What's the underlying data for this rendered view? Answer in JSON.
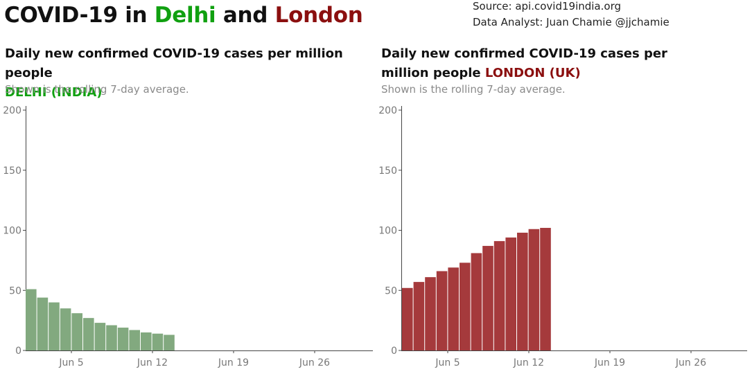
{
  "header": {
    "title_prefix": "COVID-19 in ",
    "city1": "Delhi",
    "title_and": " and ",
    "city2": "London",
    "source": "Source: api.covid19india.org",
    "analyst": "Data Analyst:  Juan Chamie @jjchamie"
  },
  "colors": {
    "delhi_title": "#10a010",
    "london_title": "#8b0f0f",
    "delhi_bar": "#82a97f",
    "london_bar": "#a53a3c"
  },
  "chart_data": [
    {
      "type": "bar",
      "title": "Daily new confirmed COVID-19 cases per million people",
      "region": "DELHI (INDIA)",
      "subtitle": "Shown is the rolling 7-day average.",
      "x_tick_labels": [
        "Jun 5",
        "Jun 12",
        "Jun 19",
        "Jun 26"
      ],
      "categories": [
        "Jun 2",
        "Jun 3",
        "Jun 4",
        "Jun 5",
        "Jun 6",
        "Jun 7",
        "Jun 8",
        "Jun 9",
        "Jun 10",
        "Jun 11",
        "Jun 12",
        "Jun 13",
        "Jun 14"
      ],
      "values": [
        51,
        44,
        40,
        35,
        31,
        27,
        23,
        21,
        19,
        17,
        15,
        14,
        13
      ],
      "ylim": [
        0,
        200
      ],
      "y_ticks": [
        0,
        50,
        100,
        150,
        200
      ],
      "grid": false,
      "legend": "none"
    },
    {
      "type": "bar",
      "title": "Daily new confirmed COVID-19 cases per million people",
      "region": "LONDON (UK)",
      "subtitle": "Shown is the rolling 7-day average.",
      "x_tick_labels": [
        "Jun 5",
        "Jun 12",
        "Jun 19",
        "Jun 26"
      ],
      "categories": [
        "Jun 2",
        "Jun 3",
        "Jun 4",
        "Jun 5",
        "Jun 6",
        "Jun 7",
        "Jun 8",
        "Jun 9",
        "Jun 10",
        "Jun 11",
        "Jun 12",
        "Jun 13",
        "Jun 14"
      ],
      "values": [
        52,
        57,
        61,
        66,
        69,
        73,
        81,
        87,
        91,
        94,
        98,
        101,
        102
      ],
      "ylim": [
        0,
        200
      ],
      "y_ticks": [
        0,
        50,
        100,
        150,
        200
      ],
      "grid": false,
      "legend": "none"
    }
  ]
}
